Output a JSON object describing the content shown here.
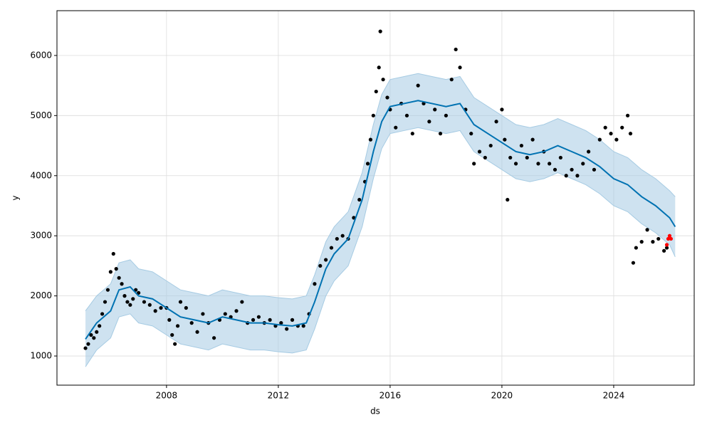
{
  "chart_data": {
    "type": "forecast",
    "xlabel": "ds",
    "ylabel": "y",
    "xlim": [
      2004.08,
      2026.88
    ],
    "ylim": [
      515,
      6745
    ],
    "xticks": [
      2008,
      2012,
      2016,
      2020,
      2024
    ],
    "yticks": [
      1000,
      2000,
      3000,
      4000,
      5000,
      6000
    ],
    "grid": true,
    "forecast": {
      "color": "#0072b2",
      "band_color": "#a6cbe3",
      "x": [
        2005.1,
        2005.5,
        2006,
        2006.3,
        2006.7,
        2007,
        2007.5,
        2008,
        2008.5,
        2009,
        2009.5,
        2010,
        2010.5,
        2011,
        2011.5,
        2012,
        2012.5,
        2013,
        2013.3,
        2013.7,
        2014,
        2014.5,
        2015,
        2015.4,
        2015.7,
        2016,
        2016.5,
        2017,
        2017.5,
        2018,
        2018.5,
        2019,
        2019.5,
        2020,
        2020.5,
        2021,
        2021.5,
        2022,
        2022.5,
        2023,
        2023.5,
        2024,
        2024.5,
        2025,
        2025.5,
        2026,
        2026.2
      ],
      "values": [
        1280,
        1550,
        1750,
        2100,
        2150,
        2000,
        1950,
        1800,
        1650,
        1600,
        1550,
        1650,
        1600,
        1550,
        1550,
        1520,
        1500,
        1550,
        1900,
        2450,
        2700,
        2950,
        3600,
        4400,
        4900,
        5150,
        5200,
        5250,
        5200,
        5150,
        5200,
        4850,
        4700,
        4550,
        4400,
        4350,
        4400,
        4500,
        4400,
        4300,
        4150,
        3950,
        3850,
        3650,
        3500,
        3300,
        3150
      ],
      "upper": [
        1750,
        2000,
        2200,
        2550,
        2600,
        2450,
        2400,
        2250,
        2100,
        2050,
        2000,
        2100,
        2050,
        2000,
        2000,
        1970,
        1950,
        2000,
        2350,
        2900,
        3150,
        3400,
        4050,
        4850,
        5350,
        5600,
        5650,
        5700,
        5650,
        5600,
        5650,
        5300,
        5150,
        5000,
        4850,
        4800,
        4850,
        4950,
        4850,
        4750,
        4600,
        4400,
        4300,
        4100,
        3950,
        3750,
        3650
      ],
      "lower": [
        820,
        1100,
        1300,
        1650,
        1700,
        1550,
        1500,
        1350,
        1200,
        1150,
        1100,
        1200,
        1150,
        1100,
        1100,
        1070,
        1050,
        1100,
        1450,
        2000,
        2250,
        2500,
        3150,
        3950,
        4450,
        4700,
        4750,
        4800,
        4750,
        4700,
        4750,
        4400,
        4250,
        4100,
        3950,
        3900,
        3950,
        4050,
        3950,
        3850,
        3700,
        3500,
        3400,
        3200,
        3050,
        2850,
        2650
      ]
    },
    "observed": {
      "color": "#000000",
      "x": [
        2005.1,
        2005.2,
        2005.3,
        2005.4,
        2005.5,
        2005.6,
        2005.7,
        2005.8,
        2005.9,
        2006.0,
        2006.1,
        2006.2,
        2006.3,
        2006.4,
        2006.5,
        2006.6,
        2006.7,
        2006.8,
        2006.9,
        2007.0,
        2007.2,
        2007.4,
        2007.6,
        2007.8,
        2008.0,
        2008.1,
        2008.2,
        2008.3,
        2008.4,
        2008.5,
        2008.7,
        2008.9,
        2009.1,
        2009.3,
        2009.5,
        2009.7,
        2009.9,
        2010.1,
        2010.3,
        2010.5,
        2010.7,
        2010.9,
        2011.1,
        2011.3,
        2011.5,
        2011.7,
        2011.9,
        2012.1,
        2012.3,
        2012.5,
        2012.7,
        2012.9,
        2013.1,
        2013.3,
        2013.5,
        2013.7,
        2013.9,
        2014.1,
        2014.3,
        2014.5,
        2014.7,
        2014.9,
        2015.1,
        2015.2,
        2015.3,
        2015.4,
        2015.5,
        2015.6,
        2015.65,
        2015.75,
        2015.9,
        2016.0,
        2016.2,
        2016.4,
        2016.6,
        2016.8,
        2017.0,
        2017.2,
        2017.4,
        2017.6,
        2017.8,
        2018.0,
        2018.2,
        2018.35,
        2018.5,
        2018.7,
        2018.9,
        2019.0,
        2019.2,
        2019.4,
        2019.6,
        2019.8,
        2020.0,
        2020.1,
        2020.2,
        2020.3,
        2020.5,
        2020.7,
        2020.9,
        2021.1,
        2021.3,
        2021.5,
        2021.7,
        2021.9,
        2022.1,
        2022.3,
        2022.5,
        2022.7,
        2022.9,
        2023.1,
        2023.3,
        2023.5,
        2023.7,
        2023.9,
        2024.1,
        2024.3,
        2024.5,
        2024.6,
        2024.7,
        2024.8,
        2025.0,
        2025.2,
        2025.4,
        2025.6,
        2025.8,
        2025.9
      ],
      "values": [
        1130,
        1200,
        1350,
        1300,
        1400,
        1500,
        1700,
        1900,
        2100,
        2400,
        2700,
        2450,
        2300,
        2200,
        2000,
        1900,
        1850,
        1950,
        2100,
        2050,
        1900,
        1850,
        1750,
        1800,
        1800,
        1600,
        1350,
        1200,
        1500,
        1900,
        1800,
        1550,
        1400,
        1700,
        1550,
        1300,
        1600,
        1700,
        1650,
        1750,
        1900,
        1550,
        1600,
        1650,
        1550,
        1600,
        1500,
        1550,
        1450,
        1600,
        1500,
        1500,
        1700,
        2200,
        2500,
        2600,
        2800,
        2950,
        3000,
        2950,
        3300,
        3600,
        3900,
        4200,
        4600,
        5000,
        5400,
        5800,
        6400,
        5600,
        5300,
        5100,
        4800,
        5200,
        5000,
        4700,
        5500,
        5200,
        4900,
        5100,
        4700,
        5000,
        5600,
        6100,
        5800,
        5100,
        4700,
        4200,
        4400,
        4300,
        4500,
        4900,
        5100,
        4600,
        3600,
        4300,
        4200,
        4500,
        4300,
        4600,
        4200,
        4400,
        4200,
        4100,
        4300,
        4000,
        4100,
        4000,
        4200,
        4400,
        4100,
        4600,
        4800,
        4700,
        4600,
        4800,
        5000,
        4700,
        2550,
        2800,
        2900,
        3100,
        2900,
        2950,
        2750,
        2800
      ]
    },
    "recent": {
      "color": "#ff0000",
      "x": [
        2025.9,
        2025.95,
        2026.0,
        2026.05
      ],
      "values": [
        2850,
        2950,
        3000,
        2950
      ]
    }
  }
}
